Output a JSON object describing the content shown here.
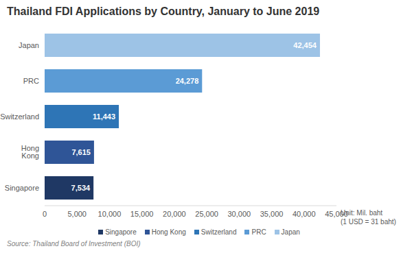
{
  "chart_data": {
    "type": "bar",
    "orientation": "horizontal",
    "title": "Thailand FDI Applications by Country, January to June 2019",
    "categories": [
      "Japan",
      "PRC",
      "Switzerland",
      "Hong Kong",
      "Singapore"
    ],
    "values": [
      42454,
      24278,
      11443,
      7615,
      7534
    ],
    "value_labels": [
      "42,454",
      "24,278",
      "11,443",
      "7,615",
      "7,534"
    ],
    "colors": [
      "#9dc3e6",
      "#5b9bd5",
      "#2e75b6",
      "#2f5597",
      "#1f3864"
    ],
    "xlim": [
      0,
      45000
    ],
    "xticks": [
      0,
      {
        "value": 5000,
        "label": "5,000"
      },
      {
        "value": 10000,
        "label": "10,000"
      },
      {
        "value": 15000,
        "label": "15,000"
      },
      {
        "value": 20000,
        "label": "20,000"
      },
      {
        "value": 25000,
        "label": "25,000"
      },
      {
        "value": 30000,
        "label": "30,000"
      },
      {
        "value": 35000,
        "label": "35,000"
      },
      {
        "value": 40000,
        "label": "40,000"
      },
      {
        "value": 45000,
        "label": "45,000"
      }
    ],
    "xlabel": "Unit: Mil. baht",
    "annotations": [
      "(1 USD = 31 baht)",
      "Source: Thailand Board of Investment (BOI)"
    ],
    "data_labels": true,
    "legend": "bottom",
    "grid": false
  }
}
